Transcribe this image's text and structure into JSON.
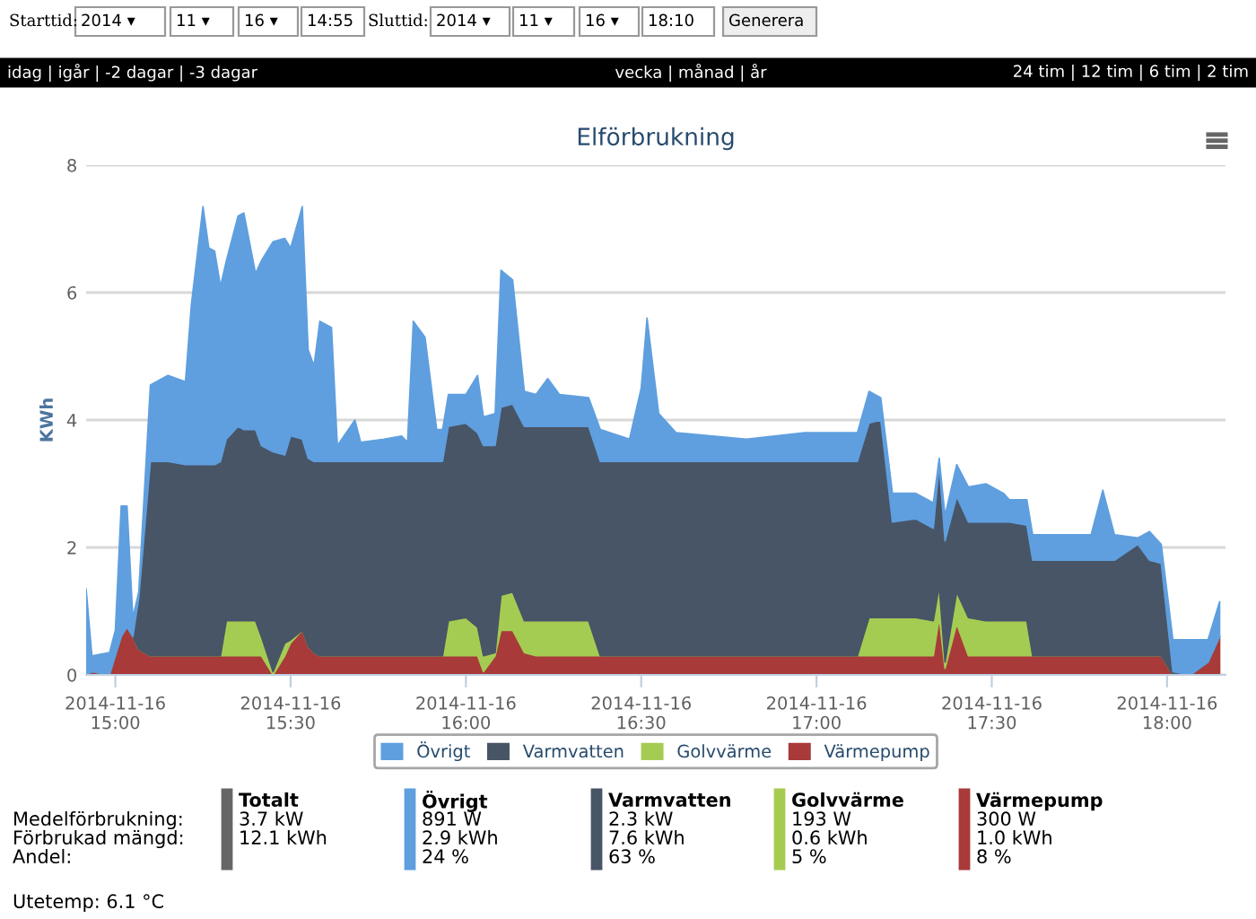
{
  "chart_data": [
    {
      "type": "other",
      "annotations": [
        "Starttid:",
        "2014 ▾",
        "11 ▾",
        "16 ▾",
        "14:55",
        "Sluttid:",
        "2014 ▾",
        "11 ▾",
        "16 ▾",
        "18:10",
        "Generera",
        "idag | igår | -2 dagar | -3 dagar",
        "vecka | månad | år",
        "24 tim | 12 tim | 6 tim | 2 tim"
      ]
    },
    {
      "type": "area",
      "stacked": true,
      "title": "Elförbrukning",
      "ylabel": "KWh",
      "grid": "y",
      "legend": "bottom",
      "x": [
        "2014-11-16T14:55",
        "2014-11-16T14:56",
        "2014-11-16T14:59",
        "2014-11-16T15:00",
        "2014-11-16T15:01",
        "2014-11-16T15:02",
        "2014-11-16T15:03",
        "2014-11-16T15:04",
        "2014-11-16T15:06",
        "2014-11-16T15:09",
        "2014-11-16T15:12",
        "2014-11-16T15:13",
        "2014-11-16T15:15",
        "2014-11-16T15:16",
        "2014-11-16T15:17",
        "2014-11-16T15:18",
        "2014-11-16T15:19",
        "2014-11-16T15:21",
        "2014-11-16T15:22",
        "2014-11-16T15:24",
        "2014-11-16T15:25",
        "2014-11-16T15:27",
        "2014-11-16T15:29",
        "2014-11-16T15:30",
        "2014-11-16T15:32",
        "2014-11-16T15:33",
        "2014-11-16T15:34",
        "2014-11-16T15:35",
        "2014-11-16T15:37",
        "2014-11-16T15:38",
        "2014-11-16T15:41",
        "2014-11-16T15:42",
        "2014-11-16T15:46",
        "2014-11-16T15:49",
        "2014-11-16T15:50",
        "2014-11-16T15:51",
        "2014-11-16T15:53",
        "2014-11-16T15:55",
        "2014-11-16T15:56",
        "2014-11-16T15:57",
        "2014-11-16T16:00",
        "2014-11-16T16:02",
        "2014-11-16T16:03",
        "2014-11-16T16:05",
        "2014-11-16T16:06",
        "2014-11-16T16:08",
        "2014-11-16T16:10",
        "2014-11-16T16:12",
        "2014-11-16T16:14",
        "2014-11-16T16:16",
        "2014-11-16T16:21",
        "2014-11-16T16:23",
        "2014-11-16T16:28",
        "2014-11-16T16:30",
        "2014-11-16T16:31",
        "2014-11-16T16:33",
        "2014-11-16T16:36",
        "2014-11-16T16:48",
        "2014-11-16T16:58",
        "2014-11-16T17:07",
        "2014-11-16T17:09",
        "2014-11-16T17:11",
        "2014-11-16T17:13",
        "2014-11-16T17:17",
        "2014-11-16T17:20",
        "2014-11-16T17:21",
        "2014-11-16T17:22",
        "2014-11-16T17:24",
        "2014-11-16T17:26",
        "2014-11-16T17:29",
        "2014-11-16T17:32",
        "2014-11-16T17:33",
        "2014-11-16T17:36",
        "2014-11-16T17:37",
        "2014-11-16T17:41",
        "2014-11-16T17:47",
        "2014-11-16T17:49",
        "2014-11-16T17:51",
        "2014-11-16T17:55",
        "2014-11-16T17:57",
        "2014-11-16T17:59",
        "2014-11-16T18:01",
        "2014-11-16T18:04",
        "2014-11-16T18:07",
        "2014-11-16T18:09"
      ],
      "series": [
        {
          "name": "Värmepump",
          "color": "#a83a3a",
          "values": [
            0,
            0.05,
            0,
            0.3,
            0.6,
            0.75,
            0.6,
            0.4,
            0.3,
            0.3,
            0.3,
            0.3,
            0.3,
            0.3,
            0.3,
            0.3,
            0.3,
            0.3,
            0.3,
            0.3,
            0.3,
            0,
            0.3,
            0.5,
            0.7,
            0.45,
            0.35,
            0.3,
            0.3,
            0.3,
            0.3,
            0.3,
            0.3,
            0.3,
            0.3,
            0.3,
            0.3,
            0.3,
            0.3,
            0.3,
            0.3,
            0.3,
            0.05,
            0.3,
            0.7,
            0.7,
            0.35,
            0.3,
            0.3,
            0.3,
            0.3,
            0.3,
            0.3,
            0.3,
            0.3,
            0.3,
            0.3,
            0.3,
            0.3,
            0.3,
            0.3,
            0.3,
            0.3,
            0.3,
            0.3,
            0.9,
            0.1,
            0.8,
            0.3,
            0.3,
            0.3,
            0.3,
            0.3,
            0.3,
            0.3,
            0.3,
            0.3,
            0.3,
            0.3,
            0.3,
            0.3,
            0,
            0,
            0.2,
            0.6
          ]
        },
        {
          "name": "Golvvärme",
          "color": "#a5cc52",
          "values": [
            0,
            0,
            0,
            0,
            0,
            0,
            0,
            0,
            0,
            0,
            0,
            0,
            0,
            0,
            0,
            0,
            0.55,
            0.55,
            0.55,
            0.55,
            0.3,
            0.05,
            0.2,
            0.05,
            0,
            0,
            0,
            0,
            0,
            0,
            0,
            0,
            0,
            0,
            0,
            0,
            0,
            0,
            0,
            0.55,
            0.6,
            0.45,
            0.25,
            0.05,
            0.55,
            0.6,
            0.5,
            0.55,
            0.55,
            0.55,
            0.55,
            0,
            0,
            0,
            0,
            0,
            0,
            0,
            0,
            0,
            0.6,
            0.6,
            0.6,
            0.6,
            0.55,
            0.5,
            0.1,
            0.5,
            0.6,
            0.55,
            0.55,
            0.55,
            0.55,
            0,
            0,
            0,
            0,
            0,
            0,
            0,
            0,
            0,
            0,
            0,
            0
          ]
        },
        {
          "name": "Varmvatten",
          "color": "#485566",
          "values": [
            0,
            0,
            0,
            0,
            0,
            0,
            0,
            0.8,
            3.05,
            3.05,
            3.0,
            3.0,
            3.0,
            3.0,
            3.0,
            3.05,
            2.85,
            3.05,
            3.0,
            3.0,
            3.0,
            3.45,
            2.95,
            3.2,
            3.0,
            2.95,
            3.0,
            3.05,
            3.05,
            3.05,
            3.05,
            3.05,
            3.05,
            3.05,
            3.05,
            3.05,
            3.05,
            3.05,
            3.05,
            3.05,
            3.05,
            3.05,
            3.3,
            3.25,
            2.95,
            2.95,
            3.05,
            3.05,
            3.05,
            3.05,
            3.05,
            3.05,
            3.05,
            3.05,
            3.05,
            3.05,
            3.05,
            3.05,
            3.05,
            3.05,
            3.05,
            3.1,
            1.5,
            1.55,
            1.45,
            1.9,
            1.9,
            1.5,
            1.5,
            1.55,
            1.55,
            1.55,
            1.5,
            1.5,
            1.5,
            1.5,
            1.5,
            1.5,
            1.75,
            1.5,
            1.45,
            0.05,
            0,
            0,
            0
          ]
        },
        {
          "name": "Övrigt",
          "color": "#5f9fdf",
          "values": [
            1.35,
            0.25,
            0.35,
            0.4,
            2.05,
            1.9,
            0.3,
            0.1,
            1.2,
            1.35,
            1.3,
            2.5,
            4.05,
            3.4,
            3.35,
            2.75,
            2.8,
            3.3,
            3.4,
            2.45,
            2.9,
            3.3,
            3.4,
            2.95,
            3.65,
            1.7,
            1.5,
            2.2,
            2.1,
            0.25,
            0.65,
            0.3,
            0.35,
            0.4,
            0.3,
            2.2,
            1.95,
            0.5,
            0.5,
            0.5,
            0.45,
            0.9,
            0.45,
            0.5,
            2.15,
            1.95,
            0.55,
            0.5,
            0.75,
            0.5,
            0.45,
            0.5,
            0.35,
            1.15,
            2.25,
            0.75,
            0.45,
            0.35,
            0.45,
            0.45,
            0.5,
            0.35,
            0.45,
            0.4,
            0.4,
            0.1,
            0.4,
            0.5,
            0.55,
            0.6,
            0.45,
            0.35,
            0.4,
            0.4,
            0.4,
            0.4,
            1.1,
            0.4,
            0.1,
            0.45,
            0.3,
            0.5,
            0.55,
            0.35,
            0.55
          ]
        }
      ],
      "xlim": [
        "2014-11-16T14:55",
        "2014-11-16T18:10"
      ],
      "xticks": [
        {
          "value": "2014-11-16T15:00",
          "label": "2014-11-16\n15:00"
        },
        {
          "value": "2014-11-16T15:30",
          "label": "2014-11-16\n15:30"
        },
        {
          "value": "2014-11-16T16:00",
          "label": "2014-11-16\n16:00"
        },
        {
          "value": "2014-11-16T16:30",
          "label": "2014-11-16\n16:30"
        },
        {
          "value": "2014-11-16T17:00",
          "label": "2014-11-16\n17:00"
        },
        {
          "value": "2014-11-16T17:30",
          "label": "2014-11-16\n17:30"
        },
        {
          "value": "2014-11-16T18:00",
          "label": "2014-11-16\n18:00"
        }
      ],
      "ylim": [
        0,
        8
      ],
      "yticks": [
        0,
        2,
        4,
        6,
        8
      ]
    },
    {
      "type": "other",
      "colors": [
        "#666666",
        "#5f9fdf",
        "#485566",
        "#a5cc52",
        "#a83a3a"
      ],
      "annotations": [
        "Medelförbrukning:",
        "Förbrukad mängd:",
        "Andel:",
        "Totalt",
        "3.7 kW",
        "12.1 kWh",
        "Övrigt",
        "891 W",
        "2.9 kWh",
        "24 %",
        "Varmvatten",
        "2.3 kW",
        "7.6 kWh",
        "63 %",
        "Golvvärme",
        "193 W",
        "0.6 kWh",
        "5 %",
        "Värmepump",
        "300 W",
        "1.0 kWh",
        "8 %",
        "Utetemp: 6.1 °C"
      ]
    }
  ]
}
